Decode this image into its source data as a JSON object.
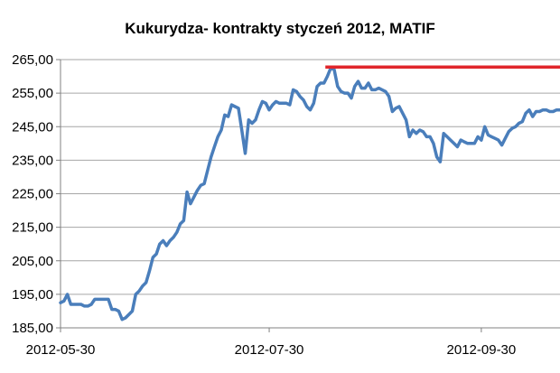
{
  "chart_data": {
    "type": "line",
    "title": "Kukurydza- kontrakty styczeń 2012, MATIF",
    "xlabel": "",
    "ylabel": "",
    "ylim": [
      185,
      265
    ],
    "yticks": [
      "185,00",
      "195,00",
      "205,00",
      "215,00",
      "225,00",
      "235,00",
      "245,00",
      "255,00",
      "265,00"
    ],
    "xticks": [
      {
        "label": "2012-05-30",
        "x": 0
      },
      {
        "label": "2012-07-30",
        "x": 61
      },
      {
        "label": "2012-09-30",
        "x": 123
      }
    ],
    "xlim": [
      0,
      146
    ],
    "grid": "horizontal",
    "series": [
      {
        "color": "#4a7ebb",
        "points": [
          [
            0,
            192.5
          ],
          [
            1,
            193
          ],
          [
            2,
            195
          ],
          [
            3,
            192
          ],
          [
            4,
            192
          ],
          [
            5,
            192
          ],
          [
            6,
            192
          ],
          [
            7,
            191.5
          ],
          [
            8,
            191.5
          ],
          [
            9,
            192
          ],
          [
            10,
            193.5
          ],
          [
            11,
            193.5
          ],
          [
            12,
            193.5
          ],
          [
            13,
            193.5
          ],
          [
            14,
            193.5
          ],
          [
            15,
            190.5
          ],
          [
            16,
            190.5
          ],
          [
            17,
            190
          ],
          [
            18,
            187.5
          ],
          [
            19,
            188
          ],
          [
            20,
            189
          ],
          [
            21,
            190
          ],
          [
            22,
            195
          ],
          [
            23,
            196
          ],
          [
            24,
            197.5
          ],
          [
            25,
            198.5
          ],
          [
            26,
            202
          ],
          [
            27,
            206
          ],
          [
            28,
            207
          ],
          [
            29,
            210
          ],
          [
            30,
            211
          ],
          [
            31,
            209.5
          ],
          [
            32,
            211
          ],
          [
            33,
            212
          ],
          [
            34,
            213.5
          ],
          [
            35,
            216
          ],
          [
            36,
            217
          ],
          [
            37,
            225.5
          ],
          [
            38,
            222
          ],
          [
            39,
            224
          ],
          [
            40,
            226
          ],
          [
            41,
            227.5
          ],
          [
            42,
            228
          ],
          [
            43,
            232
          ],
          [
            44,
            236
          ],
          [
            45,
            239
          ],
          [
            46,
            242
          ],
          [
            47,
            244
          ],
          [
            48,
            248.5
          ],
          [
            49,
            248
          ],
          [
            50,
            251.5
          ],
          [
            51,
            251
          ],
          [
            52,
            250.5
          ],
          [
            53,
            244
          ],
          [
            54,
            237
          ],
          [
            55,
            247
          ],
          [
            56,
            246
          ],
          [
            57,
            247
          ],
          [
            58,
            250
          ],
          [
            59,
            252.5
          ],
          [
            60,
            252
          ],
          [
            61,
            250
          ],
          [
            62,
            251.5
          ],
          [
            63,
            252.5
          ],
          [
            64,
            252
          ],
          [
            65,
            252
          ],
          [
            66,
            252
          ],
          [
            67,
            251.5
          ],
          [
            68,
            256
          ],
          [
            69,
            255.5
          ],
          [
            70,
            254
          ],
          [
            71,
            253
          ],
          [
            72,
            251
          ],
          [
            73,
            250
          ],
          [
            74,
            252
          ],
          [
            75,
            257
          ],
          [
            76,
            258
          ],
          [
            77,
            258
          ],
          [
            78,
            260
          ],
          [
            79,
            262.5
          ],
          [
            80,
            262
          ],
          [
            81,
            257
          ],
          [
            82,
            255.5
          ],
          [
            83,
            255
          ],
          [
            84,
            255
          ],
          [
            85,
            253.5
          ],
          [
            86,
            257
          ],
          [
            87,
            258.5
          ],
          [
            88,
            256.5
          ],
          [
            89,
            256.5
          ],
          [
            90,
            258
          ],
          [
            91,
            256
          ],
          [
            92,
            256
          ],
          [
            93,
            256.5
          ],
          [
            94,
            256
          ],
          [
            95,
            255.5
          ],
          [
            96,
            254
          ],
          [
            97,
            249.5
          ],
          [
            98,
            250.5
          ],
          [
            99,
            251
          ],
          [
            100,
            249
          ],
          [
            101,
            247
          ],
          [
            102,
            242
          ],
          [
            103,
            244
          ],
          [
            104,
            243
          ],
          [
            105,
            244
          ],
          [
            106,
            243.5
          ],
          [
            107,
            242
          ],
          [
            108,
            242
          ],
          [
            109,
            240
          ],
          [
            110,
            236
          ],
          [
            111,
            234.5
          ],
          [
            112,
            243
          ],
          [
            113,
            242
          ],
          [
            114,
            241
          ],
          [
            115,
            240
          ],
          [
            116,
            239
          ],
          [
            117,
            241
          ],
          [
            118,
            240.5
          ],
          [
            119,
            240
          ],
          [
            120,
            240
          ],
          [
            121,
            240
          ],
          [
            122,
            242
          ],
          [
            123,
            241
          ],
          [
            124,
            245
          ],
          [
            125,
            242.5
          ],
          [
            126,
            242
          ],
          [
            127,
            241.5
          ],
          [
            128,
            241
          ],
          [
            129,
            239.5
          ],
          [
            130,
            241.5
          ],
          [
            131,
            243.5
          ],
          [
            132,
            244.5
          ],
          [
            133,
            245
          ],
          [
            134,
            246
          ],
          [
            135,
            246.5
          ],
          [
            136,
            249
          ],
          [
            137,
            250
          ],
          [
            138,
            248
          ],
          [
            139,
            249.5
          ],
          [
            140,
            249.5
          ],
          [
            141,
            250
          ],
          [
            142,
            250
          ],
          [
            143,
            249.5
          ],
          [
            144,
            249.5
          ],
          [
            145,
            250
          ],
          [
            146,
            250
          ]
        ]
      }
    ],
    "annotations": [
      {
        "type": "horizontal-line",
        "color": "#e0262b",
        "y": 262.5,
        "x_start": 79,
        "x_end": 146
      }
    ]
  }
}
